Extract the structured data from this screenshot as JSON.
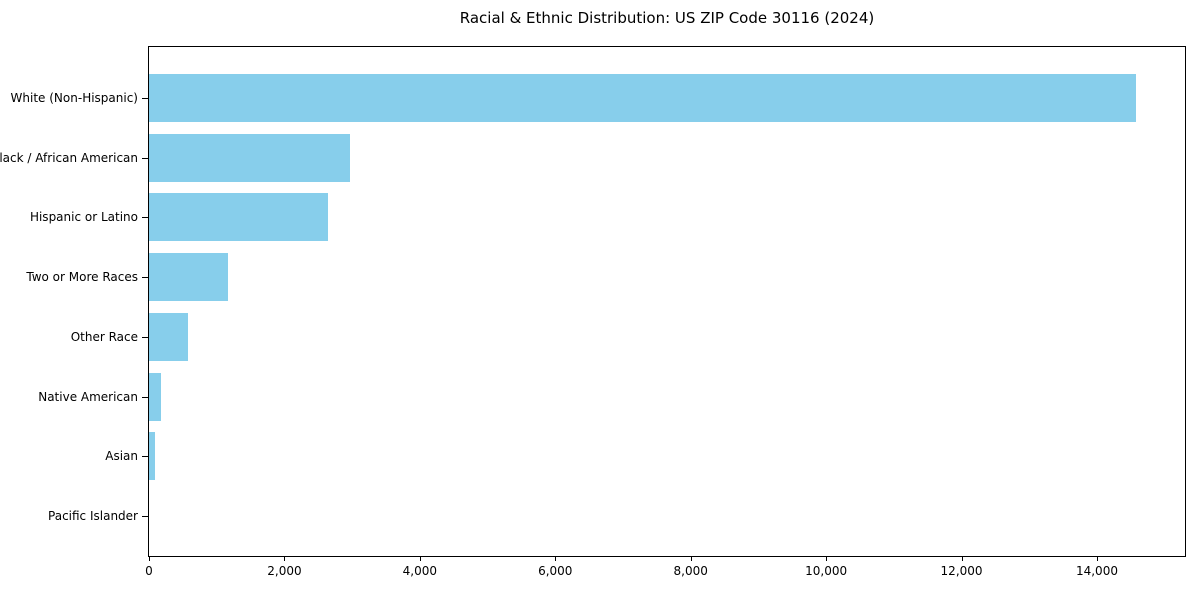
{
  "chart_data": {
    "type": "bar",
    "orientation": "horizontal",
    "title": "Racial & Ethnic Distribution: US ZIP Code 30116 (2024)",
    "xlabel": "",
    "ylabel": "",
    "categories": [
      "White (Non-Hispanic)",
      "Black / African American",
      "Hispanic or Latino",
      "Two or More Races",
      "Other Race",
      "Native American",
      "Asian",
      "Pacific Islander"
    ],
    "values": [
      14570,
      2965,
      2645,
      1160,
      570,
      175,
      90,
      0
    ],
    "xlim": [
      0,
      15300
    ],
    "xticks": [
      0,
      2000,
      4000,
      6000,
      8000,
      10000,
      12000,
      14000
    ],
    "xtick_labels": [
      "0",
      "2,000",
      "4,000",
      "6,000",
      "8,000",
      "10,000",
      "12,000",
      "14,000"
    ],
    "bar_color": "#87CEEB",
    "grid": false,
    "legend": null,
    "background": "#ffffff",
    "axis_color": "#000000"
  }
}
